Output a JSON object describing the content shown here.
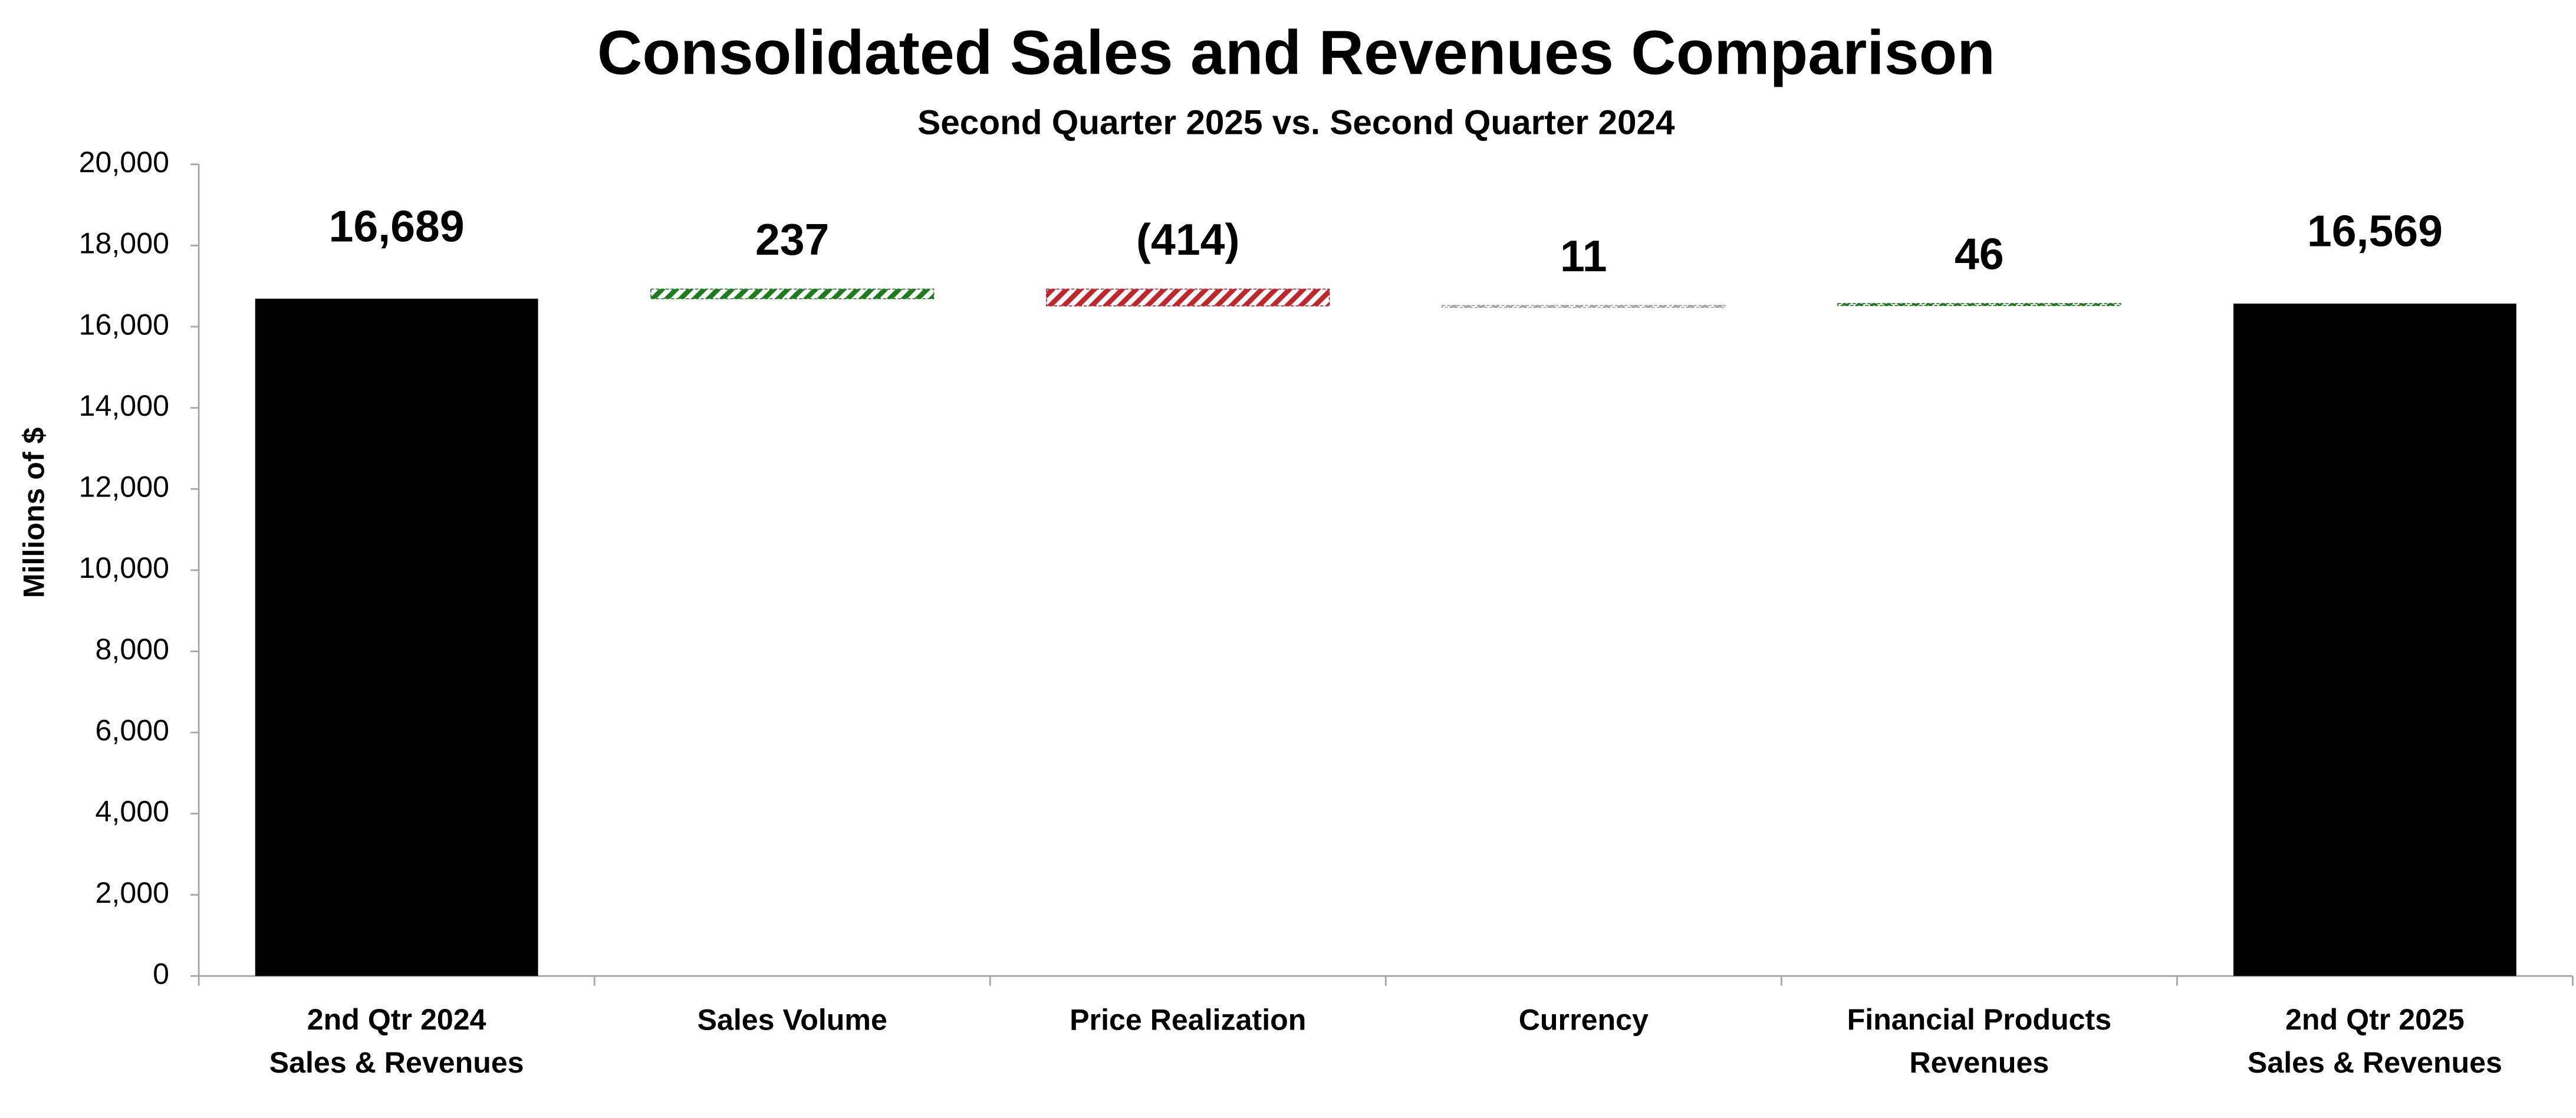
{
  "chart_data": {
    "type": "waterfall",
    "title": "Consolidated Sales and Revenues Comparison",
    "subtitle": "Second Quarter 2025 vs. Second Quarter 2024",
    "ylabel": "Millions of $",
    "categories": [
      "2nd Qtr 2024\nSales & Revenues",
      "Sales Volume",
      "Price Realization",
      "Currency",
      "Financial Products\nRevenues",
      "2nd Qtr 2025\nSales & Revenues"
    ],
    "values": [
      16689,
      237,
      -414,
      11,
      46,
      16569
    ],
    "value_labels": [
      "16,689",
      "237",
      "(414)",
      "11",
      "46",
      "16,569"
    ],
    "measure": [
      "total",
      "relative",
      "relative",
      "relative",
      "relative",
      "total"
    ],
    "colors": [
      "#000000",
      "#1e7b1e",
      "#c0272d",
      "#a6a6a6",
      "#1e7b1e",
      "#000000"
    ],
    "ylim": [
      0,
      20000
    ],
    "yticks": [
      0,
      {
        "value": 2000,
        "label": "2,000"
      },
      {
        "value": 4000,
        "label": "4,000"
      },
      {
        "value": 6000,
        "label": "6,000"
      },
      {
        "value": 8000,
        "label": "8,000"
      },
      {
        "value": 10000,
        "label": "10,000"
      },
      {
        "value": 12000,
        "label": "12,000"
      },
      {
        "value": 14000,
        "label": "14,000"
      },
      {
        "value": 16000,
        "label": "16,000"
      },
      {
        "value": 18000,
        "label": "18,000"
      },
      {
        "value": 20000,
        "label": "20,000"
      }
    ],
    "grid": false
  }
}
